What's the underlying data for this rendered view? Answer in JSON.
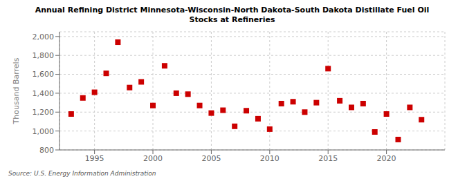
{
  "chart_data": {
    "type": "scatter",
    "title": "Annual Refining District Minnesota-Wisconsin-North Dakota-South Dakota Distillate Fuel Oil\nStocks at Refineries",
    "ylabel": "Thousand Barrels",
    "annotations": [
      "Source: U.S. Energy Information Administration"
    ],
    "x": [
      1993,
      1994,
      1995,
      1996,
      1997,
      1998,
      1999,
      2000,
      2001,
      2002,
      2003,
      2004,
      2005,
      2006,
      2007,
      2008,
      2009,
      2010,
      2011,
      2012,
      2013,
      2014,
      2015,
      2016,
      2017,
      2018,
      2019,
      2020,
      2021,
      2022,
      2023
    ],
    "values": [
      1180,
      1350,
      1410,
      1610,
      1940,
      1460,
      1520,
      1270,
      1690,
      1400,
      1390,
      1270,
      1190,
      1220,
      1050,
      1215,
      1130,
      1020,
      1290,
      1310,
      1200,
      1300,
      1660,
      1320,
      1250,
      1290,
      990,
      1180,
      910,
      1250,
      1120
    ],
    "color": "#cc0000",
    "marker": "square",
    "xlim": [
      1992,
      2025
    ],
    "xticks": [
      1995,
      2000,
      2005,
      2010,
      2015,
      2020
    ],
    "ylim": [
      800,
      2050
    ],
    "yticks": [
      800,
      {
        "value": 1000,
        "label": "1,000"
      },
      {
        "value": 1200,
        "label": "1,200"
      },
      {
        "value": 1400,
        "label": "1,400"
      },
      {
        "value": 1600,
        "label": "1,600"
      },
      {
        "value": 1800,
        "label": "1,800"
      },
      {
        "value": 2000,
        "label": "2,000"
      }
    ],
    "grid": true
  }
}
